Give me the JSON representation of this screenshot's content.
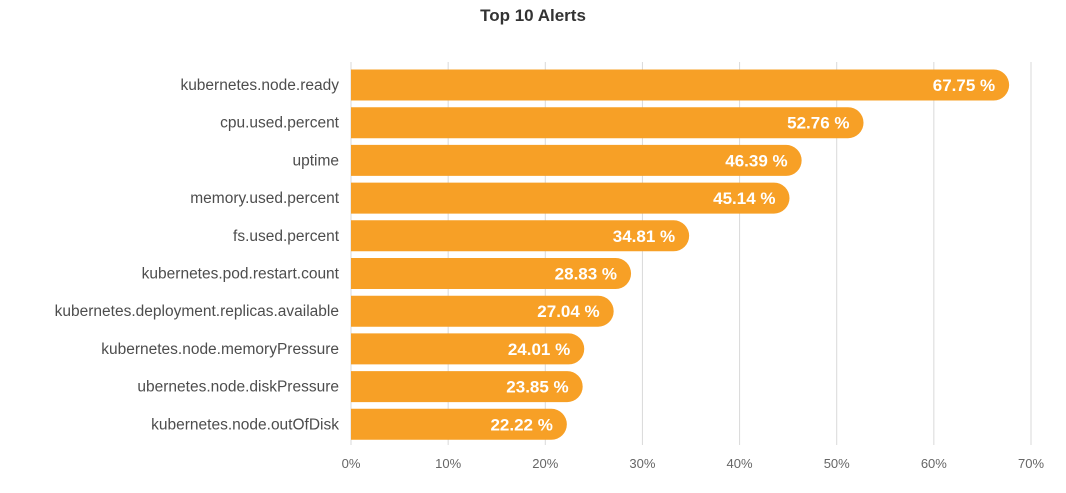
{
  "chart_data": {
    "type": "bar",
    "orientation": "horizontal",
    "title": "Top 10 Alerts",
    "xlabel": "",
    "ylabel": "",
    "categories": [
      "kubernetes.node.ready",
      "cpu.used.percent",
      "uptime",
      "memory.used.percent",
      "fs.used.percent",
      "kubernetes.pod.restart.count",
      "kubernetes.deployment.replicas.available",
      "kubernetes.node.memoryPressure",
      "ubernetes.node.diskPressure",
      "kubernetes.node.outOfDisk"
    ],
    "values": [
      67.75,
      52.76,
      46.39,
      45.14,
      34.81,
      28.83,
      27.04,
      24.01,
      23.85,
      22.22
    ],
    "value_labels": [
      "67.75 %",
      "52.76 %",
      "46.39 %",
      "45.14 %",
      "34.81 %",
      "28.83 %",
      "27.04 %",
      "24.01 %",
      "23.85 %",
      "22.22 %"
    ],
    "xlim": [
      0,
      70
    ],
    "x_ticks": [
      0,
      10,
      20,
      30,
      40,
      50,
      60,
      70
    ],
    "x_tick_labels": [
      "0%",
      "10%",
      "20%",
      "30%",
      "40%",
      "50%",
      "60%",
      "70%"
    ],
    "grid": true,
    "legend": "none",
    "colors": {
      "bar": "#F7A026",
      "grid": "#D9D9D9",
      "category_text": "#4D4D4D",
      "tick_text": "#666666",
      "value_text": "#FFFFFF"
    }
  }
}
